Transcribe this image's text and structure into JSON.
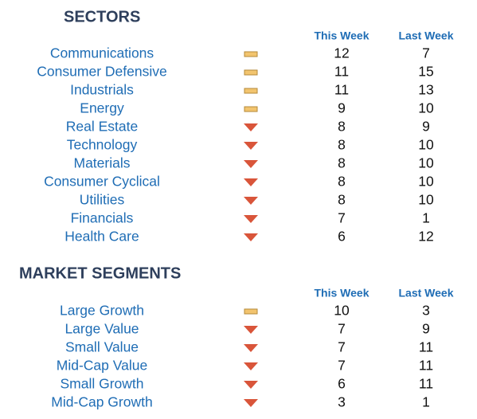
{
  "sections": [
    {
      "title": "SECTORS",
      "headers": [
        "This Week",
        "Last Week"
      ],
      "rows": [
        {
          "name": "Communications",
          "trend": "flat",
          "this_week": 12,
          "last_week": 7
        },
        {
          "name": "Consumer Defensive",
          "trend": "flat",
          "this_week": 11,
          "last_week": 15
        },
        {
          "name": "Industrials",
          "trend": "flat",
          "this_week": 11,
          "last_week": 13
        },
        {
          "name": "Energy",
          "trend": "flat",
          "this_week": 9,
          "last_week": 10
        },
        {
          "name": "Real Estate",
          "trend": "down",
          "this_week": 8,
          "last_week": 9
        },
        {
          "name": "Technology",
          "trend": "down",
          "this_week": 8,
          "last_week": 10
        },
        {
          "name": "Materials",
          "trend": "down",
          "this_week": 8,
          "last_week": 10
        },
        {
          "name": "Consumer Cyclical",
          "trend": "down",
          "this_week": 8,
          "last_week": 10
        },
        {
          "name": "Utilities",
          "trend": "down",
          "this_week": 8,
          "last_week": 10
        },
        {
          "name": "Financials",
          "trend": "down",
          "this_week": 7,
          "last_week": 1
        },
        {
          "name": "Health Care",
          "trend": "down",
          "this_week": 6,
          "last_week": 12
        }
      ]
    },
    {
      "title": "MARKET SEGMENTS",
      "headers": [
        "This Week",
        "Last Week"
      ],
      "rows": [
        {
          "name": "Large Growth",
          "trend": "flat",
          "this_week": 10,
          "last_week": 3
        },
        {
          "name": "Large Value",
          "trend": "down",
          "this_week": 7,
          "last_week": 9
        },
        {
          "name": "Small Value",
          "trend": "down",
          "this_week": 7,
          "last_week": 11
        },
        {
          "name": "Mid-Cap Value",
          "trend": "down",
          "this_week": 7,
          "last_week": 11
        },
        {
          "name": "Small Growth",
          "trend": "down",
          "this_week": 6,
          "last_week": 11
        },
        {
          "name": "Mid-Cap Growth",
          "trend": "down",
          "this_week": 3,
          "last_week": 1
        }
      ]
    }
  ]
}
